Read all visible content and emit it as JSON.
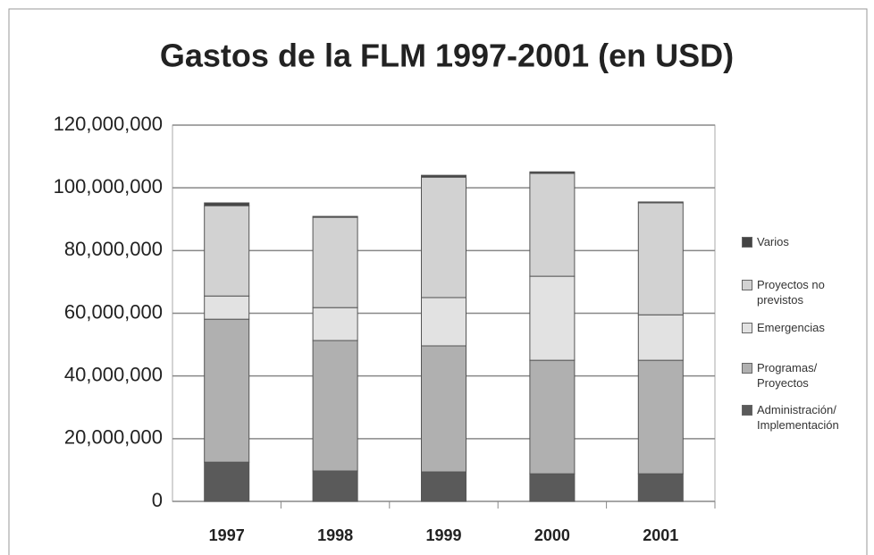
{
  "chart_data": {
    "type": "bar",
    "stacked": true,
    "title": "Gastos de la FLM 1997-2001 (en USD)",
    "categories": [
      "1997",
      "1998",
      "1999",
      "2000",
      "2001"
    ],
    "series": [
      {
        "name": "Administración/ Implementación",
        "color": "#5a5a5a",
        "values": [
          12500000,
          9700000,
          9400000,
          8800000,
          8800000
        ]
      },
      {
        "name": "Programas/ Proyectos",
        "color": "#b0b0b0",
        "values": [
          45600000,
          41600000,
          40200000,
          36200000,
          36200000
        ]
      },
      {
        "name": "Emergencias",
        "color": "#e2e2e2",
        "values": [
          7400000,
          10500000,
          15400000,
          26800000,
          14500000
        ]
      },
      {
        "name": "Proyectos no previstos",
        "color": "#d2d2d2",
        "values": [
          28800000,
          28800000,
          38400000,
          32800000,
          35700000
        ]
      },
      {
        "name": "Varios",
        "color": "#444444",
        "values": [
          900000,
          300000,
          600000,
          500000,
          300000
        ]
      }
    ],
    "ylim": [
      0,
      120000000
    ],
    "yticks": [
      0,
      {
        "value": 20000000,
        "label": "20,000,000"
      },
      {
        "value": 40000000,
        "label": "40,000,000"
      },
      {
        "value": 60000000,
        "label": "60,000,000"
      },
      {
        "value": 80000000,
        "label": "80,000,000"
      },
      {
        "value": 100000000,
        "label": "100,000,000"
      },
      {
        "value": 120000000,
        "label": "120,000,000"
      }
    ],
    "grid": true,
    "legend": "right"
  }
}
